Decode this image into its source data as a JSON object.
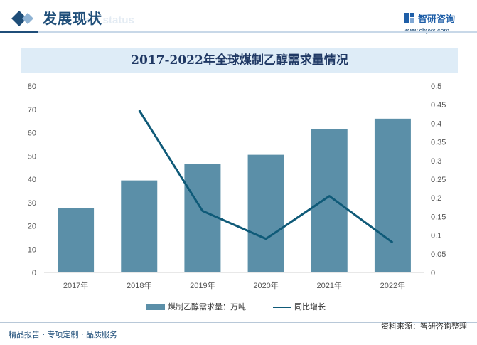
{
  "header": {
    "title": "发展现状",
    "subtitle": "ent status"
  },
  "brand": {
    "name": "智研咨询",
    "url": "www.chyxx.com"
  },
  "chart_data": {
    "type": "bar",
    "title": "2017-2022年全球煤制乙醇需求量情况",
    "categories": [
      "2017年",
      "2018年",
      "2019年",
      "2020年",
      "2021年",
      "2022年"
    ],
    "series": [
      {
        "name": "煤制乙醇需求量：万吨",
        "type": "bar",
        "axis": "left",
        "values": [
          27.5,
          39.5,
          46.5,
          50.5,
          61.5,
          66
        ]
      },
      {
        "name": "同比增长",
        "type": "line",
        "axis": "right",
        "values": [
          null,
          0.435,
          0.165,
          0.09,
          0.205,
          0.08
        ]
      }
    ],
    "left_axis": {
      "ylim": [
        0,
        80
      ],
      "ticks": [
        "0",
        "10",
        "20",
        "30",
        "40",
        "50",
        "60",
        "70",
        "80"
      ]
    },
    "right_axis": {
      "ylim": [
        0,
        0.5
      ],
      "ticks": [
        "0",
        "0.05",
        "0.1",
        "0.15",
        "0.2",
        "0.25",
        "0.3",
        "0.35",
        "0.4",
        "0.45",
        "0.5"
      ]
    },
    "legend_position": "bottom",
    "colors": {
      "bar": "#5b8fa8",
      "line": "#0f5a78"
    }
  },
  "footer": {
    "left": "精品报告 · 专项定制 · 品质服务",
    "source": "资料来源：智研咨询整理"
  }
}
